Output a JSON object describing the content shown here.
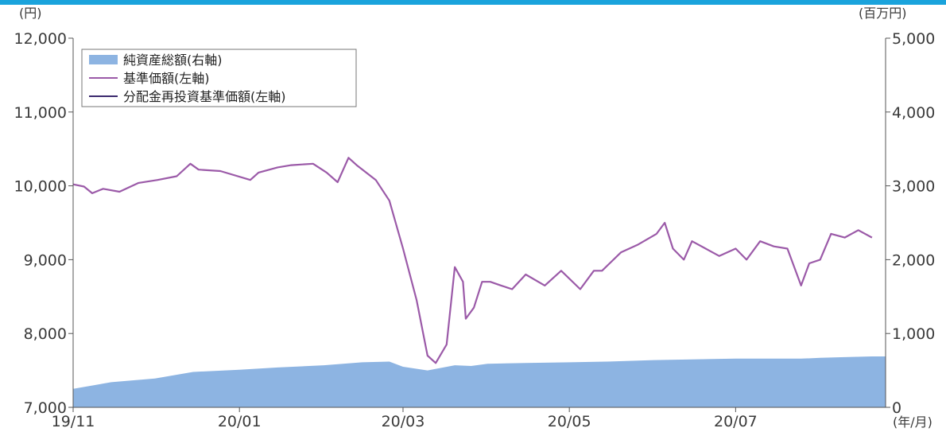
{
  "chart_data": {
    "type": "line",
    "left_axis_unit": "(円)",
    "right_axis_unit": "(百万円)",
    "x_axis_unit": "(年/月)",
    "x_ticks": [
      "19/11",
      "20/01",
      "20/03",
      "20/05",
      "20/07"
    ],
    "left_ylim": [
      7000,
      12000
    ],
    "left_yticks": [
      "7,000",
      "8,000",
      "9,000",
      "10,000",
      "11,000",
      "12,000"
    ],
    "right_ylim": [
      0,
      5000
    ],
    "right_yticks": [
      "0",
      "1,000",
      "2,000",
      "3,000",
      "4,000",
      "5,000"
    ],
    "legend": {
      "position": "top-left",
      "items": [
        {
          "label": "純資産総額(右軸)",
          "kind": "area",
          "color": "#8db4e2"
        },
        {
          "label": "基準価額(左軸)",
          "kind": "line",
          "color": "#9b5aa8"
        },
        {
          "label": "分配金再投資基準価額(左軸)",
          "kind": "line",
          "color": "#3b2a6e"
        }
      ]
    },
    "colors": {
      "area": "#8db4e2",
      "price": "#9b5aa8",
      "reinvest": "#3b2a6e",
      "header_bar": "#1aa3dc"
    },
    "series": [
      {
        "name": "純資産総額(右軸)",
        "axis": "right",
        "x": [
          "2019-11-01",
          "2019-11-15",
          "2019-12-01",
          "2019-12-15",
          "2020-01-01",
          "2020-01-15",
          "2020-02-01",
          "2020-02-15",
          "2020-02-25",
          "2020-03-01",
          "2020-03-10",
          "2020-03-20",
          "2020-03-26",
          "2020-04-01",
          "2020-04-15",
          "2020-05-01",
          "2020-05-15",
          "2020-06-01",
          "2020-06-15",
          "2020-07-01",
          "2020-07-15",
          "2020-07-25",
          "2020-08-01",
          "2020-08-10",
          "2020-08-20"
        ],
        "values": [
          250,
          340,
          390,
          480,
          510,
          540,
          570,
          610,
          620,
          550,
          500,
          570,
          560,
          590,
          600,
          610,
          620,
          640,
          650,
          660,
          660,
          660,
          670,
          680,
          690
        ]
      },
      {
        "name": "基準価額(左軸)",
        "axis": "left",
        "x": [
          "2019-11-01",
          "2019-11-05",
          "2019-11-08",
          "2019-11-12",
          "2019-11-18",
          "2019-11-25",
          "2019-12-02",
          "2019-12-09",
          "2019-12-14",
          "2019-12-17",
          "2019-12-25",
          "2020-01-05",
          "2020-01-08",
          "2020-01-15",
          "2020-01-20",
          "2020-01-28",
          "2020-02-02",
          "2020-02-06",
          "2020-02-10",
          "2020-02-13",
          "2020-02-20",
          "2020-02-25",
          "2020-03-01",
          "2020-03-06",
          "2020-03-10",
          "2020-03-13",
          "2020-03-17",
          "2020-03-20",
          "2020-03-23",
          "2020-03-24",
          "2020-03-27",
          "2020-03-30",
          "2020-04-02",
          "2020-04-06",
          "2020-04-10",
          "2020-04-15",
          "2020-04-22",
          "2020-04-28",
          "2020-05-05",
          "2020-05-10",
          "2020-05-13",
          "2020-05-20",
          "2020-05-26",
          "2020-06-02",
          "2020-06-05",
          "2020-06-08",
          "2020-06-12",
          "2020-06-15",
          "2020-06-20",
          "2020-06-25",
          "2020-07-01",
          "2020-07-05",
          "2020-07-10",
          "2020-07-15",
          "2020-07-20",
          "2020-07-25",
          "2020-07-28",
          "2020-08-01",
          "2020-08-05",
          "2020-08-10",
          "2020-08-15",
          "2020-08-20"
        ],
        "values": [
          10020,
          9990,
          9900,
          9960,
          9920,
          10040,
          10080,
          10130,
          10300,
          10220,
          10200,
          10080,
          10180,
          10250,
          10280,
          10300,
          10180,
          10050,
          10380,
          10280,
          10080,
          9800,
          9150,
          8450,
          7700,
          7600,
          7850,
          8900,
          8700,
          8200,
          8350,
          8700,
          8700,
          8650,
          8600,
          8800,
          8650,
          8850,
          8600,
          8850,
          8850,
          9100,
          9200,
          9350,
          9500,
          9150,
          9000,
          9250,
          9150,
          9050,
          9150,
          9000,
          9250,
          9180,
          9150,
          8650,
          8950,
          9000,
          9350,
          9300,
          9400,
          9300
        ]
      }
    ]
  }
}
